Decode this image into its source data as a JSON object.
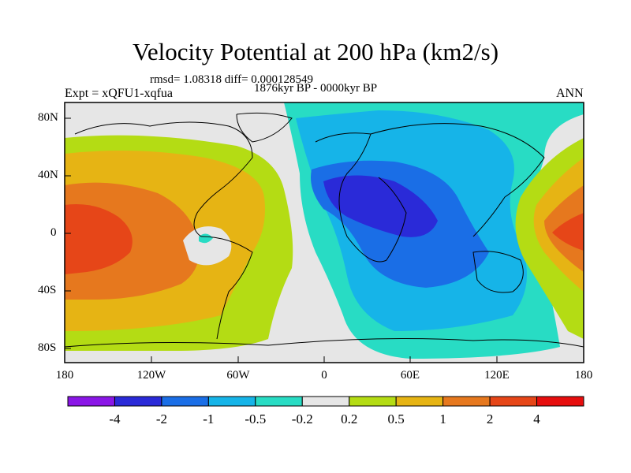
{
  "title": "Velocity Potential at 200 hPa (km2/s)",
  "stats": "rmsd= 1.08318 diff= 0.000128549",
  "period": "1876kyr BP - 0000kyr BP",
  "experiment": "Expt = xQFU1-xqfua",
  "season": "ANN",
  "y_ticks": [
    "80N",
    "40N",
    "0",
    "40S",
    "80S"
  ],
  "x_ticks": [
    "180",
    "120W",
    "60W",
    "0",
    "60E",
    "120E",
    "180"
  ],
  "colorbar": {
    "colors": [
      "#8a16e6",
      "#2a2ad8",
      "#1a6ee6",
      "#16b4e8",
      "#28dcc4",
      "#e6e6e6",
      "#b4dc14",
      "#e6b414",
      "#e6781e",
      "#e64618",
      "#e60e0e"
    ],
    "labels": [
      "-4",
      "-2",
      "-1",
      "-0.5",
      "-0.2",
      "0.2",
      "0.5",
      "1",
      "2",
      "4"
    ]
  }
}
